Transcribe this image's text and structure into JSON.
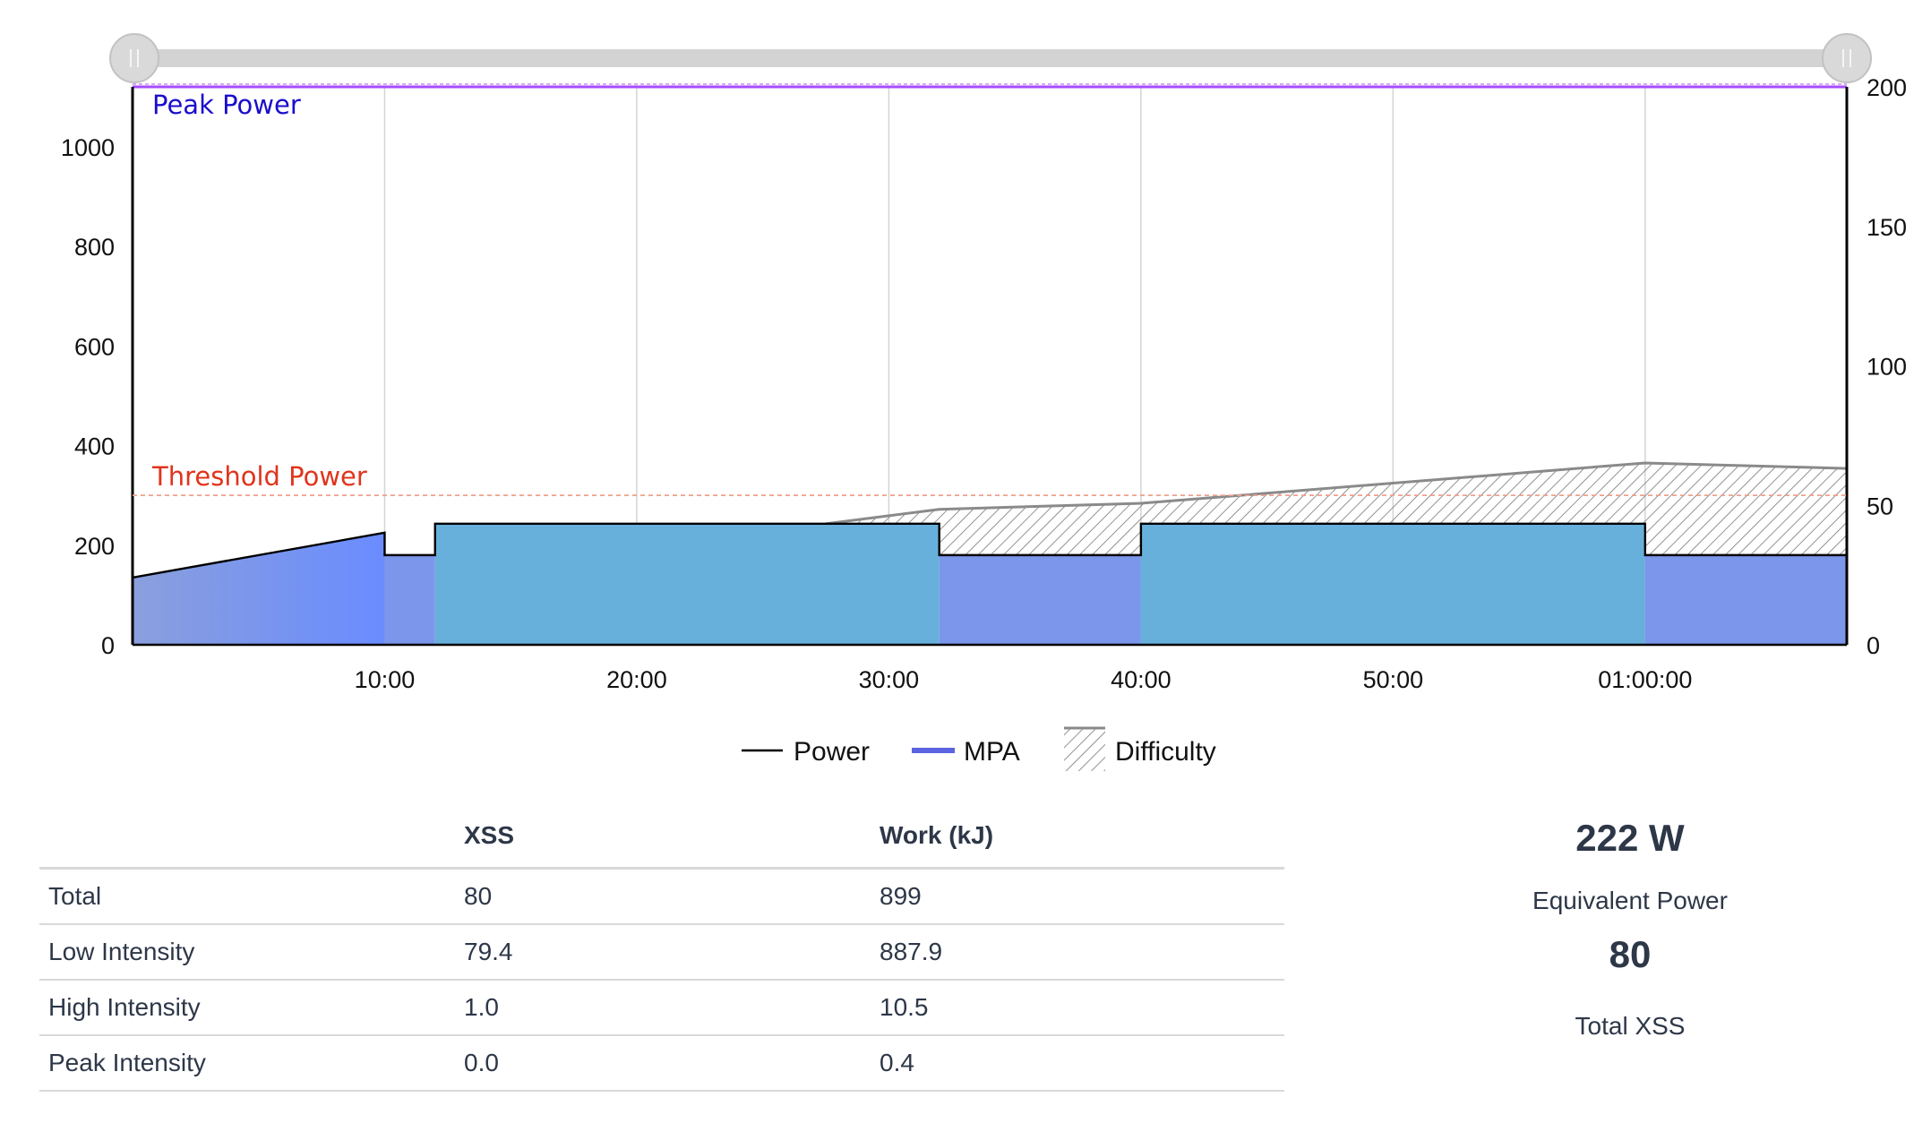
{
  "chart_data": {
    "type": "area",
    "x_unit": "seconds",
    "x_ticks": [
      "10:00",
      "20:00",
      "30:00",
      "40:00",
      "50:00",
      "01:00:00"
    ],
    "x_tick_values": [
      600,
      1200,
      1800,
      2400,
      3000,
      3600
    ],
    "xlim": [
      0,
      4080
    ],
    "y_left_ticks": [
      0,
      200,
      400,
      600,
      800,
      1000
    ],
    "ylim_left": [
      0,
      1120
    ],
    "y_right_ticks": [
      0,
      50,
      100,
      150,
      200
    ],
    "ylim_right": [
      0,
      200
    ],
    "grid": "vertical",
    "series": [
      {
        "name": "Power",
        "color": "#000000",
        "points": [
          [
            0,
            135
          ],
          [
            600,
            225
          ],
          [
            600,
            180
          ],
          [
            720,
            180
          ],
          [
            720,
            243
          ],
          [
            1920,
            243
          ],
          [
            1920,
            180
          ],
          [
            2400,
            180
          ],
          [
            2400,
            243
          ],
          [
            3600,
            243
          ],
          [
            3600,
            180
          ],
          [
            4080,
            180
          ]
        ]
      },
      {
        "name": "MPA",
        "color": "#a64dff",
        "points": [
          [
            0,
            1120
          ],
          [
            4080,
            1120
          ]
        ]
      },
      {
        "name": "Difficulty",
        "color": "#888888",
        "points": [
          [
            1650,
            243
          ],
          [
            1920,
            272
          ],
          [
            2400,
            284
          ],
          [
            3600,
            365
          ],
          [
            4080,
            354
          ]
        ]
      }
    ],
    "zones": [
      {
        "x": [
          0,
          600
        ],
        "type": "ramp",
        "color": "#6a8cff"
      },
      {
        "x": [
          600,
          720
        ],
        "type": "recovery",
        "color": "#7b96ea"
      },
      {
        "x": [
          720,
          1920
        ],
        "type": "work",
        "color": "#67b0db"
      },
      {
        "x": [
          1920,
          2400
        ],
        "type": "recovery",
        "color": "#7b96ea"
      },
      {
        "x": [
          2400,
          3600
        ],
        "type": "work",
        "color": "#67b0db"
      },
      {
        "x": [
          3600,
          4080
        ],
        "type": "recovery",
        "color": "#7b96ea"
      }
    ],
    "annotations": [
      {
        "label": "Peak Power",
        "y": 1120,
        "color": "#1a0dcc"
      },
      {
        "label": "Threshold Power",
        "y": 300,
        "color": "#e0341c"
      }
    ],
    "legend": {
      "position": "bottom",
      "items": [
        {
          "label": "Power",
          "symbol": "line",
          "color": "#000000"
        },
        {
          "label": "MPA",
          "symbol": "thick-line",
          "color": "#5b63e0"
        },
        {
          "label": "Difficulty",
          "symbol": "hatch",
          "color": "#888888"
        }
      ]
    }
  },
  "table": {
    "headers": [
      "",
      "XSS",
      "Work (kJ)"
    ],
    "rows": [
      [
        "Total",
        "80",
        "899"
      ],
      [
        "Low Intensity",
        "79.4",
        "887.9"
      ],
      [
        "High Intensity",
        "1.0",
        "10.5"
      ],
      [
        "Peak Intensity",
        "0.0",
        "0.4"
      ]
    ]
  },
  "summary": {
    "equivalent_power_value": "222 W",
    "equivalent_power_label": "Equivalent Power",
    "total_xss_value": "80",
    "total_xss_label": "Total XSS"
  }
}
